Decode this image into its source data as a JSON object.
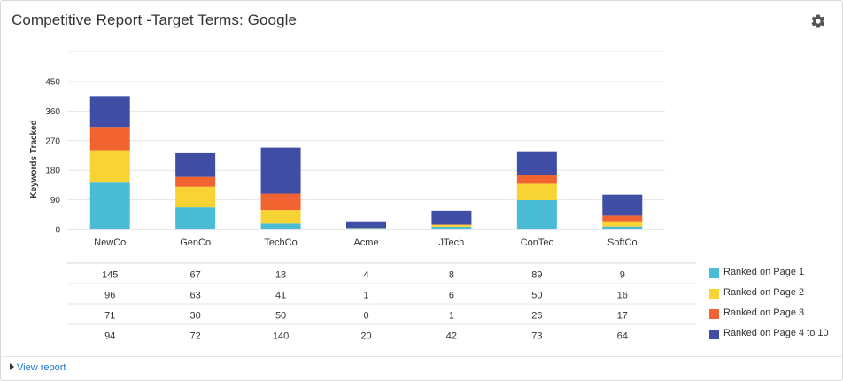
{
  "header": {
    "title": "Competitive Report -Target Terms: Google",
    "settings_icon": "gear-icon"
  },
  "footer": {
    "view_report_label": "View report"
  },
  "chart_data": {
    "type": "bar",
    "stacked": true,
    "categories": [
      "NewCo",
      "GenCo",
      "TechCo",
      "Acme",
      "JTech",
      "ConTec",
      "SoftCo"
    ],
    "ylabel": "Keywords Tracked",
    "xlabel": "",
    "ylim": [
      0,
      450
    ],
    "yticks": [
      0,
      90,
      180,
      270,
      360,
      450
    ],
    "grid": true,
    "legend_position": "right-of-table",
    "series": [
      {
        "name": "Ranked on Page 1",
        "color": "#4bbcd6",
        "values": [
          145,
          67,
          18,
          4,
          8,
          89,
          9
        ]
      },
      {
        "name": "Ranked on Page 2",
        "color": "#f7d334",
        "values": [
          96,
          63,
          41,
          1,
          6,
          50,
          16
        ]
      },
      {
        "name": "Ranked on Page 3",
        "color": "#f16331",
        "values": [
          71,
          30,
          50,
          0,
          1,
          26,
          17
        ]
      },
      {
        "name": "Ranked on Page 4 to 10",
        "color": "#3f4ea4",
        "values": [
          94,
          72,
          140,
          20,
          42,
          73,
          64
        ]
      }
    ]
  }
}
